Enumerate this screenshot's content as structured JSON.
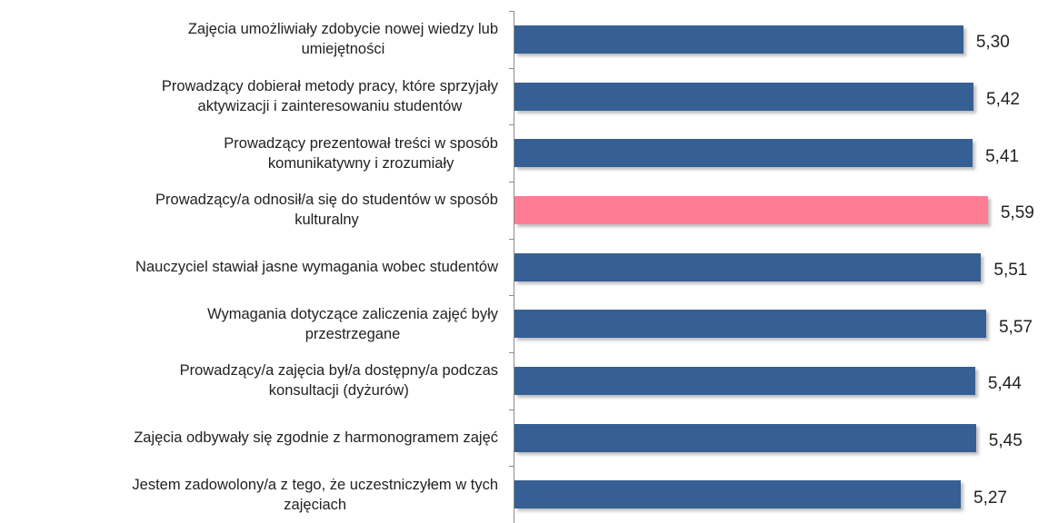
{
  "chart_data": {
    "type": "barh",
    "categories": [
      "Zajęcia umożliwiały zdobycie nowej wiedzy lub\numiejętności",
      "Prowadzący dobierał metody pracy, które sprzyjały\naktywizacji i zainteresowaniu studentów",
      "Prowadzący prezentował treści w sposób\nkomunikatywny i zrozumiały",
      "Prowadzący/a odnosił/a się do studentów w sposób\nkulturalny",
      "Nauczyciel stawiał jasne wymagania wobec studentów",
      "Wymagania dotyczące zaliczenia zajęć były\nprzestrzegane",
      "Prowadzący/a zajęcia był/a dostępny/a podczas\nkonsultacji (dyżurów)",
      "Zajęcia odbywały się zgodnie z harmonogramem zajęć",
      "Jestem zadowolony/a z tego, że uczestniczyłem w tych\nzajęciach"
    ],
    "values": [
      5.3,
      5.42,
      5.41,
      5.59,
      5.51,
      5.57,
      5.44,
      5.45,
      5.27
    ],
    "value_labels": [
      "5,30",
      "5,42",
      "5,41",
      "5,59",
      "5,51",
      "5,57",
      "5,44",
      "5,45",
      "5,27"
    ],
    "colors": [
      "#365f93",
      "#365f93",
      "#365f93",
      "#ff7c95",
      "#365f93",
      "#365f93",
      "#365f93",
      "#365f93",
      "#365f93"
    ],
    "xlim": [
      0,
      6.3
    ]
  }
}
